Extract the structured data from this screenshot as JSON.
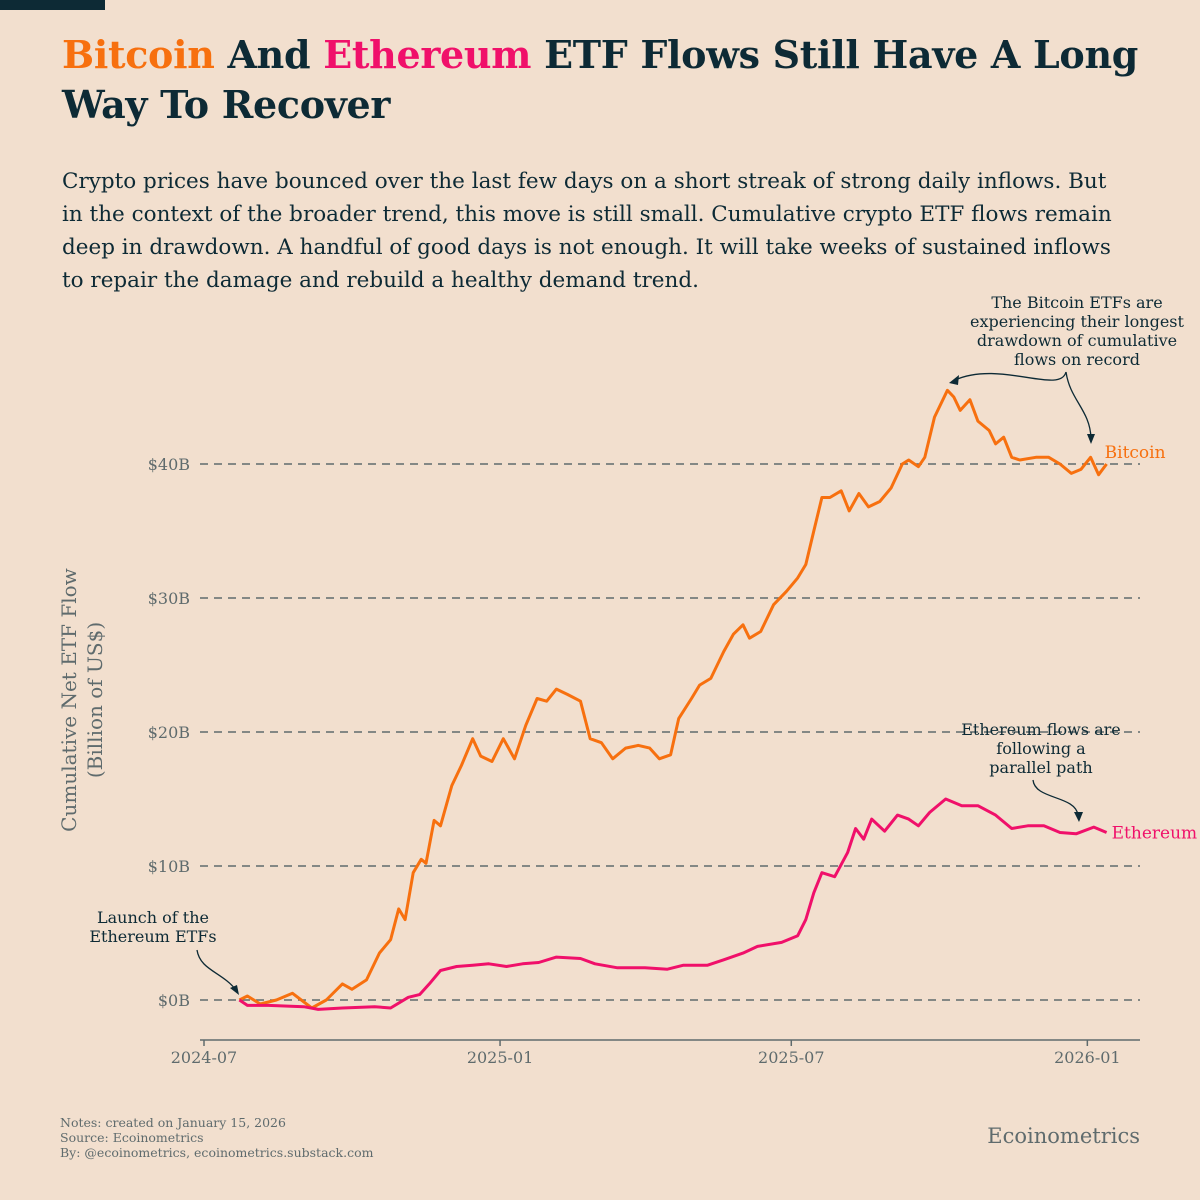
{
  "title": {
    "part1": "Bitcoin",
    "part2": " And ",
    "part3": "Ethereum",
    "part4": " ETF Flows Still Have A Long Way To Recover"
  },
  "subtitle": "Crypto prices have bounced over the last few days on a short streak of strong daily inflows. But in the context of the broader trend, this move is still small. Cumulative crypto ETF flows remain deep in drawdown. A handful of good days is not enough. It will take weeks of sustained inflows to repair the damage and rebuild a healthy demand trend.",
  "footer": {
    "notes": "Notes: created on January 15, 2026",
    "source": "Source: Ecoinometrics",
    "by": "By: @ecoinometrics, ecoinometrics.substack.com",
    "brand": "Ecoinometrics"
  },
  "colors": {
    "background": "#f2dfce",
    "text": "#0d2a35",
    "bitcoin": "#f7700f",
    "ethereum": "#f0106a",
    "axis": "#5f6b6d"
  },
  "chart_data": {
    "type": "line",
    "ylabel": [
      "Cumulative Net ETF Flow",
      "(Billion of US$)"
    ],
    "xlabel": "",
    "ylim": [
      -3,
      47
    ],
    "xlim": [
      "2024-06-26",
      "2026-01-31"
    ],
    "grid": "horizontal dashed",
    "yticks": [
      {
        "v": 0,
        "label": "$0B"
      },
      {
        "v": 10,
        "label": "$10B"
      },
      {
        "v": 20,
        "label": "$20B"
      },
      {
        "v": 30,
        "label": "$30B"
      },
      {
        "v": 40,
        "label": "$40B"
      }
    ],
    "xticks": [
      {
        "d": "2024-07-01",
        "label": "2024-07"
      },
      {
        "d": "2025-01-01",
        "label": "2025-01"
      },
      {
        "d": "2025-07-01",
        "label": "2025-07"
      },
      {
        "d": "2026-01-01",
        "label": "2026-01"
      }
    ],
    "annotations": {
      "launch": [
        "Launch of the",
        "Ethereum ETFs"
      ],
      "bitcoin": [
        "The Bitcoin ETFs are",
        "experiencing their longest",
        "drawdown of  cumulative",
        "flows on record"
      ],
      "ethereum": [
        "Ethereum flows are",
        "following a",
        "parallel path"
      ]
    },
    "series": [
      {
        "name": "Bitcoin",
        "color": "#f7700f",
        "points": [
          [
            "2024-07-23",
            0
          ],
          [
            "2024-07-28",
            0.3
          ],
          [
            "2024-08-05",
            -0.3
          ],
          [
            "2024-08-15",
            0
          ],
          [
            "2024-08-25",
            0.5
          ],
          [
            "2024-09-06",
            -0.6
          ],
          [
            "2024-09-15",
            0.0
          ],
          [
            "2024-09-25",
            1.2
          ],
          [
            "2024-10-01",
            0.8
          ],
          [
            "2024-10-10",
            1.5
          ],
          [
            "2024-10-18",
            3.5
          ],
          [
            "2024-10-25",
            4.5
          ],
          [
            "2024-10-30",
            6.8
          ],
          [
            "2024-11-03",
            6.0
          ],
          [
            "2024-11-08",
            9.5
          ],
          [
            "2024-11-13",
            10.5
          ],
          [
            "2024-11-16",
            10.2
          ],
          [
            "2024-11-21",
            13.4
          ],
          [
            "2024-11-25",
            13.0
          ],
          [
            "2024-12-02",
            16.0
          ],
          [
            "2024-12-08",
            17.5
          ],
          [
            "2024-12-15",
            19.5
          ],
          [
            "2024-12-20",
            18.2
          ],
          [
            "2024-12-27",
            17.8
          ],
          [
            "2025-01-03",
            19.5
          ],
          [
            "2025-01-10",
            18.0
          ],
          [
            "2025-01-17",
            20.5
          ],
          [
            "2025-01-24",
            22.5
          ],
          [
            "2025-01-30",
            22.3
          ],
          [
            "2025-02-05",
            23.2
          ],
          [
            "2025-02-12",
            22.8
          ],
          [
            "2025-02-20",
            22.3
          ],
          [
            "2025-02-26",
            19.5
          ],
          [
            "2025-03-05",
            19.2
          ],
          [
            "2025-03-12",
            18.0
          ],
          [
            "2025-03-20",
            18.8
          ],
          [
            "2025-03-28",
            19.0
          ],
          [
            "2025-04-04",
            18.8
          ],
          [
            "2025-04-10",
            18.0
          ],
          [
            "2025-04-17",
            18.3
          ],
          [
            "2025-04-22",
            21.0
          ],
          [
            "2025-04-30",
            22.5
          ],
          [
            "2025-05-05",
            23.5
          ],
          [
            "2025-05-12",
            24.0
          ],
          [
            "2025-05-20",
            26.0
          ],
          [
            "2025-05-26",
            27.3
          ],
          [
            "2025-06-01",
            28.0
          ],
          [
            "2025-06-05",
            27.0
          ],
          [
            "2025-06-12",
            27.5
          ],
          [
            "2025-06-20",
            29.5
          ],
          [
            "2025-06-28",
            30.5
          ],
          [
            "2025-07-05",
            31.5
          ],
          [
            "2025-07-10",
            32.5
          ],
          [
            "2025-07-15",
            35.0
          ],
          [
            "2025-07-20",
            37.5
          ],
          [
            "2025-07-25",
            37.5
          ],
          [
            "2025-08-01",
            38.0
          ],
          [
            "2025-08-06",
            36.5
          ],
          [
            "2025-08-12",
            37.8
          ],
          [
            "2025-08-18",
            36.8
          ],
          [
            "2025-08-25",
            37.2
          ],
          [
            "2025-09-01",
            38.2
          ],
          [
            "2025-09-08",
            40.0
          ],
          [
            "2025-09-12",
            40.3
          ],
          [
            "2025-09-18",
            39.8
          ],
          [
            "2025-09-22",
            40.5
          ],
          [
            "2025-09-28",
            43.5
          ],
          [
            "2025-10-06",
            45.5
          ],
          [
            "2025-10-10",
            45.0
          ],
          [
            "2025-10-14",
            44.0
          ],
          [
            "2025-10-20",
            44.8
          ],
          [
            "2025-10-25",
            43.2
          ],
          [
            "2025-11-01",
            42.5
          ],
          [
            "2025-11-05",
            41.5
          ],
          [
            "2025-11-10",
            42.0
          ],
          [
            "2025-11-15",
            40.5
          ],
          [
            "2025-11-20",
            40.3
          ],
          [
            "2025-11-30",
            40.5
          ],
          [
            "2025-12-08",
            40.5
          ],
          [
            "2025-12-15",
            40.0
          ],
          [
            "2025-12-22",
            39.3
          ],
          [
            "2025-12-28",
            39.6
          ],
          [
            "2026-01-03",
            40.5
          ],
          [
            "2026-01-08",
            39.2
          ],
          [
            "2026-01-13",
            40.0
          ]
        ]
      },
      {
        "name": "Ethereum",
        "color": "#f0106a",
        "points": [
          [
            "2024-07-23",
            0
          ],
          [
            "2024-07-28",
            -0.4
          ],
          [
            "2024-08-10",
            -0.4
          ],
          [
            "2024-09-01",
            -0.5
          ],
          [
            "2024-09-10",
            -0.7
          ],
          [
            "2024-09-25",
            -0.6
          ],
          [
            "2024-10-15",
            -0.5
          ],
          [
            "2024-10-25",
            -0.6
          ],
          [
            "2024-11-05",
            0.2
          ],
          [
            "2024-11-12",
            0.4
          ],
          [
            "2024-11-18",
            1.2
          ],
          [
            "2024-11-25",
            2.2
          ],
          [
            "2024-12-05",
            2.5
          ],
          [
            "2024-12-15",
            2.6
          ],
          [
            "2024-12-25",
            2.7
          ],
          [
            "2025-01-05",
            2.5
          ],
          [
            "2025-01-15",
            2.7
          ],
          [
            "2025-01-25",
            2.8
          ],
          [
            "2025-02-05",
            3.2
          ],
          [
            "2025-02-20",
            3.1
          ],
          [
            "2025-03-01",
            2.7
          ],
          [
            "2025-03-15",
            2.4
          ],
          [
            "2025-04-01",
            2.4
          ],
          [
            "2025-04-15",
            2.3
          ],
          [
            "2025-04-25",
            2.6
          ],
          [
            "2025-05-10",
            2.6
          ],
          [
            "2025-05-20",
            3.0
          ],
          [
            "2025-06-01",
            3.5
          ],
          [
            "2025-06-10",
            4.0
          ],
          [
            "2025-06-25",
            4.3
          ],
          [
            "2025-07-05",
            4.8
          ],
          [
            "2025-07-10",
            6.0
          ],
          [
            "2025-07-15",
            8.0
          ],
          [
            "2025-07-20",
            9.5
          ],
          [
            "2025-07-28",
            9.2
          ],
          [
            "2025-08-05",
            11.0
          ],
          [
            "2025-08-10",
            12.8
          ],
          [
            "2025-08-15",
            12.0
          ],
          [
            "2025-08-20",
            13.5
          ],
          [
            "2025-08-28",
            12.6
          ],
          [
            "2025-09-05",
            13.8
          ],
          [
            "2025-09-12",
            13.5
          ],
          [
            "2025-09-18",
            13.0
          ],
          [
            "2025-09-25",
            14.0
          ],
          [
            "2025-10-05",
            15.0
          ],
          [
            "2025-10-15",
            14.5
          ],
          [
            "2025-10-25",
            14.5
          ],
          [
            "2025-11-05",
            13.8
          ],
          [
            "2025-11-15",
            12.8
          ],
          [
            "2025-11-25",
            13.0
          ],
          [
            "2025-12-05",
            13.0
          ],
          [
            "2025-12-15",
            12.5
          ],
          [
            "2025-12-25",
            12.4
          ],
          [
            "2026-01-05",
            12.9
          ],
          [
            "2026-01-13",
            12.5
          ]
        ]
      }
    ]
  }
}
